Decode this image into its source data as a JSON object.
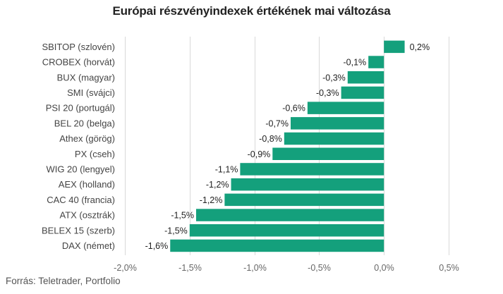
{
  "chart_data": {
    "type": "bar",
    "orientation": "horizontal",
    "title": "Európai részvényindexek értékének mai változása",
    "categories": [
      "SBITOP (szlovén)",
      "CROBEX (horvát)",
      "BUX (magyar)",
      "SMI (svájci)",
      "PSI 20 (portugál)",
      "BEL 20 (belga)",
      "Athex (görög)",
      "PX (cseh)",
      "WIG 20 (lengyel)",
      "AEX (holland)",
      "CAC 40 (francia)",
      "ATX (osztrák)",
      "BELEX 15 (szerb)",
      "DAX (német)"
    ],
    "values": [
      0.16,
      -0.12,
      -0.28,
      -0.33,
      -0.59,
      -0.72,
      -0.77,
      -0.86,
      -1.11,
      -1.18,
      -1.23,
      -1.45,
      -1.5,
      -1.65
    ],
    "value_labels": [
      "0,2%",
      "-0,1%",
      "-0,3%",
      "-0,3%",
      "-0,6%",
      "-0,7%",
      "-0,8%",
      "-0,9%",
      "-1,1%",
      "-1,2%",
      "-1,2%",
      "-1,5%",
      "-1,5%",
      "-1,6%"
    ],
    "xticks": [
      -2.0,
      -1.5,
      -1.0,
      -0.5,
      0.0,
      0.5
    ],
    "xtick_labels": [
      "-2,0%",
      "-1,5%",
      "-1,0%",
      "-0,5%",
      "0,0%",
      "0,5%"
    ],
    "xlim": [
      -2.0,
      0.5
    ],
    "xlabel": "",
    "ylabel": "",
    "grid": "vertical",
    "legend": "none",
    "bar_color": "#14a07c"
  },
  "source": "Forrás: Teletrader, Portfolio"
}
